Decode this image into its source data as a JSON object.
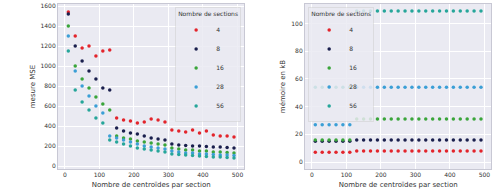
{
  "chart_data": [
    {
      "type": "scatter",
      "x_label": "Nombre de centroïdes par section",
      "y_label": "mesure MSE",
      "legend_title": "Nombre de sections",
      "legend": "upper right",
      "grid": true,
      "marker": "circle",
      "x": [
        10,
        30,
        50,
        70,
        90,
        110,
        130,
        150,
        170,
        190,
        210,
        230,
        250,
        270,
        290,
        310,
        330,
        350,
        370,
        390,
        410,
        430,
        450,
        470,
        490
      ],
      "xlim": [
        -20,
        520
      ],
      "xticks": [
        0,
        100,
        200,
        300,
        400,
        500
      ],
      "ylim": [
        -30,
        1620
      ],
      "yticks": [
        0,
        200,
        400,
        600,
        800,
        1000,
        1200,
        1400,
        1600
      ],
      "series": [
        {
          "name": "4",
          "color": "#e3242b",
          "values": [
            1540,
            1300,
            1180,
            1200,
            1100,
            1150,
            1160,
            480,
            460,
            450,
            430,
            440,
            470,
            460,
            440,
            360,
            350,
            340,
            360,
            330,
            350,
            310,
            300,
            300,
            290
          ]
        },
        {
          "name": "8",
          "color": "#1a1f4d",
          "values": [
            1520,
            1200,
            1050,
            950,
            870,
            780,
            760,
            380,
            350,
            330,
            320,
            300,
            280,
            270,
            260,
            220,
            210,
            205,
            200,
            200,
            195,
            190,
            190,
            185,
            180
          ]
        },
        {
          "name": "16",
          "color": "#3aa53a",
          "values": [
            1400,
            1000,
            870,
            780,
            690,
            620,
            560,
            300,
            280,
            270,
            250,
            240,
            230,
            220,
            210,
            180,
            170,
            160,
            160,
            150,
            150,
            140,
            140,
            135,
            130
          ]
        },
        {
          "name": "28",
          "color": "#3b9fd6",
          "values": [
            1300,
            950,
            800,
            700,
            600,
            530,
            300,
            280,
            260,
            240,
            220,
            200,
            190,
            180,
            170,
            150,
            140,
            130,
            130,
            120,
            120,
            115,
            110,
            110,
            105
          ]
        },
        {
          "name": "56",
          "color": "#26a69a",
          "values": [
            1150,
            760,
            640,
            560,
            480,
            430,
            260,
            240,
            220,
            200,
            180,
            170,
            160,
            150,
            140,
            120,
            115,
            110,
            105,
            100,
            95,
            90,
            90,
            85,
            80
          ]
        }
      ]
    },
    {
      "type": "scatter",
      "x_label": "Nombre de centroïdes par section",
      "y_label": "mémoire en kB",
      "legend_title": "Nombre de sections",
      "legend": "upper left",
      "grid": true,
      "marker": "circle",
      "x": [
        10,
        30,
        50,
        70,
        90,
        110,
        130,
        150,
        170,
        190,
        210,
        230,
        250,
        270,
        290,
        310,
        330,
        350,
        370,
        390,
        410,
        430,
        450,
        470,
        490
      ],
      "xlim": [
        -20,
        520
      ],
      "xticks": [
        0,
        100,
        200,
        300,
        400,
        500
      ],
      "ylim": [
        -5,
        114
      ],
      "yticks": [
        0,
        20,
        40,
        60,
        80,
        100
      ],
      "series": [
        {
          "name": "4",
          "color": "#e3242b",
          "values": [
            7,
            7,
            7,
            7,
            7,
            7,
            8,
            8,
            8,
            8,
            8,
            8,
            8,
            8,
            8,
            8,
            8,
            8,
            8,
            8,
            8,
            8,
            8,
            8,
            8
          ]
        },
        {
          "name": "8",
          "color": "#1a1f4d",
          "values": [
            15,
            15,
            15,
            15,
            15,
            15,
            16,
            16,
            16,
            16,
            16,
            16,
            16,
            16,
            16,
            16,
            16,
            16,
            16,
            16,
            16,
            16,
            16,
            16,
            16
          ]
        },
        {
          "name": "16",
          "color": "#3aa53a",
          "values": [
            16,
            16,
            16,
            16,
            16,
            16,
            31,
            31,
            31,
            31,
            31,
            31,
            31,
            31,
            31,
            31,
            31,
            31,
            31,
            31,
            31,
            31,
            31,
            31,
            31
          ]
        },
        {
          "name": "28",
          "color": "#3b9fd6",
          "values": [
            27,
            27,
            27,
            27,
            27,
            27,
            54,
            54,
            54,
            54,
            54,
            54,
            54,
            54,
            54,
            54,
            54,
            54,
            54,
            54,
            54,
            54,
            54,
            54,
            54
          ]
        },
        {
          "name": "56",
          "color": "#26a69a",
          "values": [
            54,
            54,
            54,
            54,
            54,
            54,
            109,
            109,
            109,
            109,
            109,
            109,
            109,
            109,
            109,
            109,
            109,
            109,
            109,
            109,
            109,
            109,
            109,
            109,
            109
          ]
        }
      ]
    }
  ]
}
